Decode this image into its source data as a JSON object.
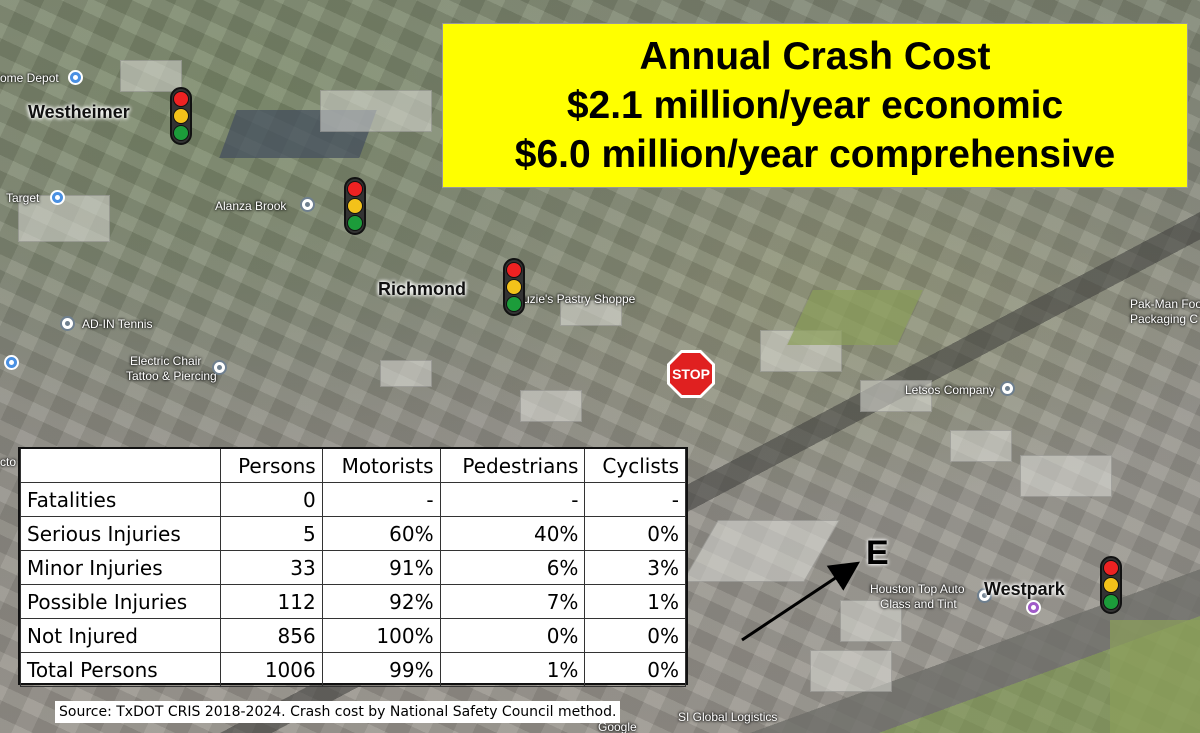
{
  "cost_box": {
    "title": "Annual Crash Cost",
    "economic": "$2.1 million/year economic",
    "comprehensive": "$6.0 million/year comprehensive"
  },
  "streets": {
    "westheimer": "Westheimer",
    "richmond": "Richmond",
    "westpark": "Westpark"
  },
  "stop_sign": {
    "text": "STOP",
    "color": "#e02020"
  },
  "direction": {
    "label": "E"
  },
  "map_labels": {
    "home_depot": "ome Depot",
    "target": "Target",
    "alanza_brook": "Alanza Brook",
    "ad_in_tennis": "AD-IN Tennis",
    "electric_chair_1": "Electric Chair",
    "electric_chair_2": "Tattoo & Piercing",
    "suzies": "Suzie's Pastry Shoppe",
    "letsos": "Letsos Company",
    "pak_man_1": "Pak-Man Foo",
    "pak_man_2": "Packaging C",
    "houston_top_auto_1": "Houston Top Auto",
    "houston_top_auto_2": "Glass and Tint",
    "global_logistics": "SI Global Logistics",
    "google": "Google",
    "ct": "cto"
  },
  "table": {
    "headers": [
      "",
      "Persons",
      "Motorists",
      "Pedestrians",
      "Cyclists"
    ],
    "rows": [
      [
        "Fatalities",
        "0",
        "-",
        "-",
        "-"
      ],
      [
        "Serious Injuries",
        "5",
        "60%",
        "40%",
        "0%"
      ],
      [
        "Minor Injuries",
        "33",
        "91%",
        "6%",
        "3%"
      ],
      [
        "Possible Injuries",
        "112",
        "92%",
        "7%",
        "1%"
      ],
      [
        "Not Injured",
        "856",
        "100%",
        "0%",
        "0%"
      ],
      [
        "Total Persons",
        "1006",
        "99%",
        "1%",
        "0%"
      ]
    ]
  },
  "source": "Source: TxDOT CRIS 2018-2024. Crash cost by National Safety Council method.",
  "colors": {
    "cost_box_bg": "#ffff00",
    "signal_red": "#e22222",
    "signal_yellow": "#f3c21a",
    "signal_green": "#1c9c3a"
  }
}
